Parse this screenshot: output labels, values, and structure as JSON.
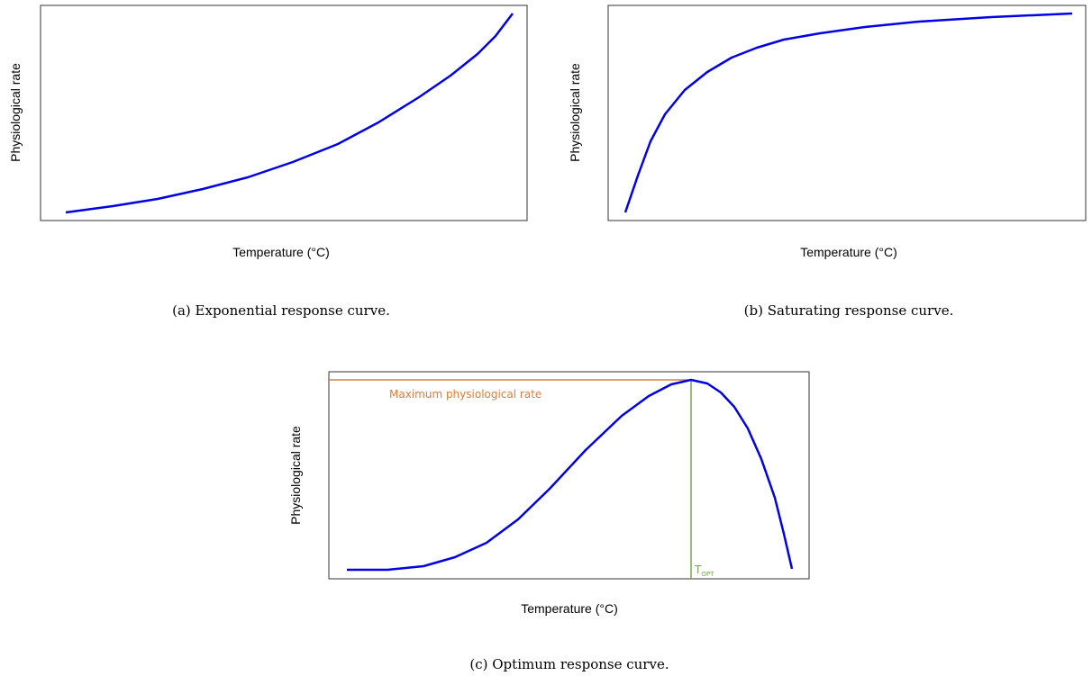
{
  "panels": [
    {
      "y_label": "Physiological rate",
      "x_label": "Temperature (°C)",
      "caption": "(a) Exponential response curve."
    },
    {
      "y_label": "Physiological rate",
      "x_label": "Temperature (°C)",
      "caption": "(b) Saturating response curve."
    },
    {
      "y_label": "Physiological rate",
      "x_label": "Temperature (°C)",
      "caption": "(c) Optimum response curve."
    }
  ],
  "annotations": {
    "max_rate": "Maximum physiological rate",
    "t_opt": "T",
    "t_opt_sub": "OPT"
  }
}
